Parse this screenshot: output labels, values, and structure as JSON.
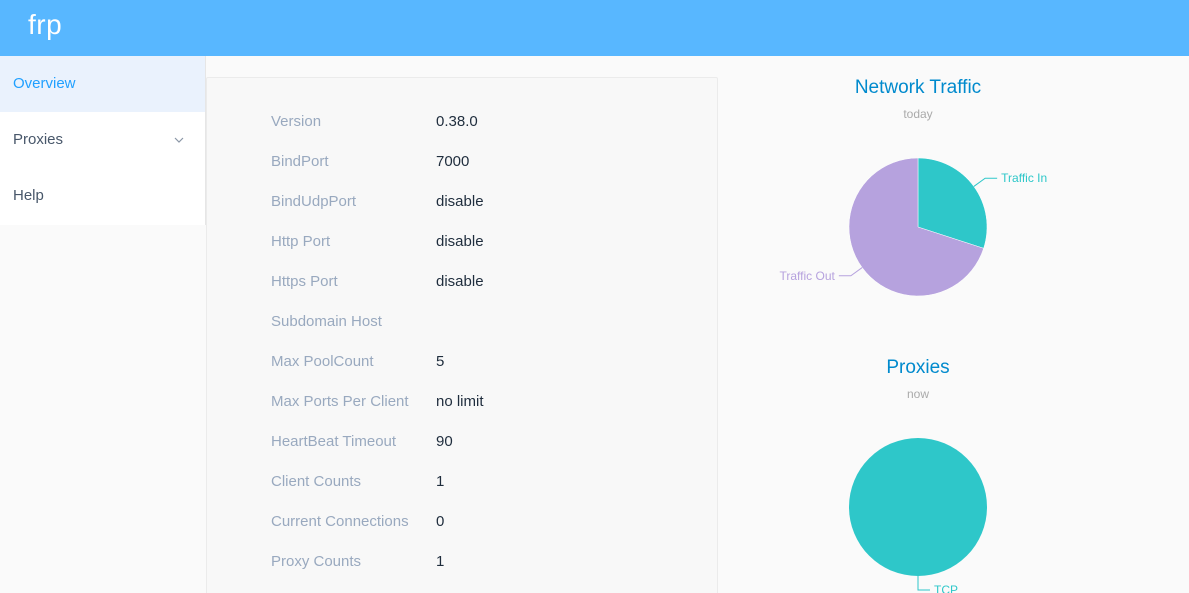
{
  "app": {
    "brand": "frp"
  },
  "sidebar": {
    "items": [
      {
        "label": "Overview"
      },
      {
        "label": "Proxies"
      },
      {
        "label": "Help"
      }
    ]
  },
  "overview": {
    "rows": [
      {
        "key": "Version",
        "value": "0.38.0"
      },
      {
        "key": "BindPort",
        "value": "7000"
      },
      {
        "key": "BindUdpPort",
        "value": "disable"
      },
      {
        "key": "Http Port",
        "value": "disable"
      },
      {
        "key": "Https Port",
        "value": "disable"
      },
      {
        "key": "Subdomain Host",
        "value": ""
      },
      {
        "key": "Max PoolCount",
        "value": "5"
      },
      {
        "key": "Max Ports Per Client",
        "value": "no limit"
      },
      {
        "key": "HeartBeat Timeout",
        "value": "90"
      },
      {
        "key": "Client Counts",
        "value": "1"
      },
      {
        "key": "Current Connections",
        "value": "0"
      },
      {
        "key": "Proxy Counts",
        "value": "1"
      }
    ]
  },
  "colors": {
    "header": "#58b7ff",
    "accent": "#20a0ff",
    "traffic_in": "#2ec7c9",
    "traffic_out": "#b6a2de",
    "tcp": "#2ec7c9"
  },
  "chart_data": [
    {
      "type": "pie",
      "title": "Network Traffic",
      "subtitle": "today",
      "categories": [
        "Traffic In",
        "Traffic Out"
      ],
      "values": [
        30,
        70
      ]
    },
    {
      "type": "pie",
      "title": "Proxies",
      "subtitle": "now",
      "categories": [
        "TCP"
      ],
      "values": [
        1
      ]
    }
  ]
}
